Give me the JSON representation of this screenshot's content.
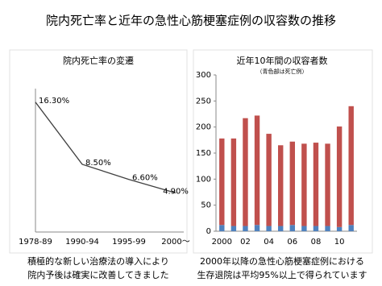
{
  "title": "院内死亡率と近年の急性心筋梗塞症例の収容数の推移",
  "chart_data": [
    {
      "type": "line",
      "title": "院内死亡率の変遷",
      "categories": [
        "1978-89",
        "1990-94",
        "1995-99",
        "2000～"
      ],
      "values": [
        16.3,
        8.5,
        6.6,
        4.9
      ],
      "value_labels": [
        "16.30%",
        "8.50%",
        "6.60%",
        "4.90%"
      ],
      "color": "#404040",
      "ylim": [
        0,
        18
      ],
      "caption": [
        "積極的な新しい治療法の導入により",
        "院内予後は確実に改善してきました"
      ]
    },
    {
      "type": "stacked_bar",
      "title": "近年10年間の収容者数",
      "subtitle": "（青色部は死亡例）",
      "categories": [
        "2000",
        null,
        "02",
        null,
        "04",
        null,
        "06",
        null,
        "08",
        null,
        "10",
        null
      ],
      "series": [
        {
          "color": "#4f81bd",
          "values": [
            12,
            10,
            10,
            12,
            10,
            10,
            12,
            10,
            10,
            10,
            8,
            12
          ]
        },
        {
          "color": "#c0504d",
          "values": [
            166,
            168,
            207,
            210,
            177,
            155,
            160,
            158,
            160,
            158,
            193,
            228
          ]
        }
      ],
      "ylim": [
        0,
        300
      ],
      "yticks": [
        0,
        50,
        100,
        150,
        200,
        250,
        300
      ],
      "caption": [
        "2000年以降の急性心筋梗塞症例における",
        "生存退院は平均95%以上で得られています"
      ]
    }
  ]
}
